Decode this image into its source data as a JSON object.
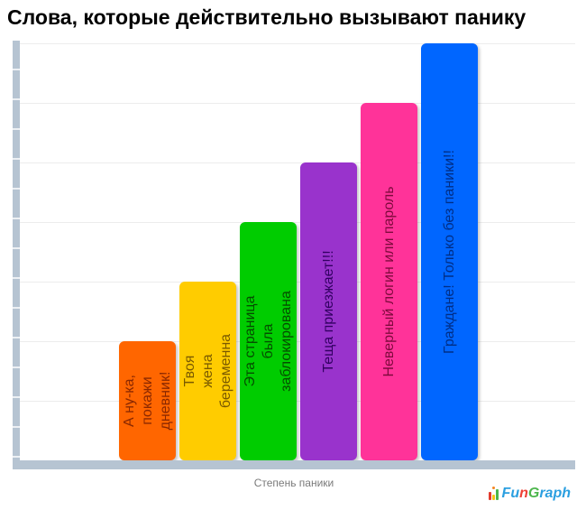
{
  "title": "Слова, которые действительно вызывают панику",
  "theme": {
    "band_color": "#b6c4d2",
    "grid_color": "#ececec",
    "title_color": "#000000",
    "xlabel_color": "#7a7a7a",
    "background": "#ffffff"
  },
  "chart_data": {
    "type": "bar",
    "title": "Слова, которые действительно вызывают панику",
    "xlabel": "Степень паники",
    "ylabel": "",
    "ylim": [
      0,
      7.2
    ],
    "grid": true,
    "legend": "none",
    "orientation": "vertical",
    "note": "unlabeled y-axis; values measured in gridline units",
    "categories": [
      "А ну-ка, покажи дневник!",
      "Твоя жена беременна",
      "Эта страница была заблокирована",
      "Теща приезжает!!!",
      "Неверный логин или пароль",
      "Граждане! Только без паники!!"
    ],
    "values": [
      2,
      3,
      4,
      5,
      6,
      7
    ],
    "bars": [
      {
        "label": "А ну-ка, покажи дневник!",
        "label_lines": [
          "А ну-ка,",
          "покажи",
          "дневник!"
        ],
        "value": 2,
        "color": "#ff6600",
        "label_color": "#8a2800"
      },
      {
        "label": "Твоя жена беременна",
        "label_lines": [
          "Твоя",
          "жена",
          "беременна"
        ],
        "value": 3,
        "color": "#ffcc00",
        "label_color": "#7a5a00"
      },
      {
        "label": "Эта страница была заблокирована",
        "label_lines": [
          "Эта страница",
          "была",
          "заблокирована"
        ],
        "value": 4,
        "color": "#00cc00",
        "label_color": "#054d00"
      },
      {
        "label": "Теща приезжает!!!",
        "label_lines": [
          "Теща приезжает!!!"
        ],
        "value": 5,
        "color": "#9933cc",
        "label_color": "#310061"
      },
      {
        "label": "Неверный логин или пароль",
        "label_lines": [
          "Неверный логин или пароль"
        ],
        "value": 6,
        "color": "#ff3399",
        "label_color": "#7d0a3c"
      },
      {
        "label": "Граждане! Только без паники!!",
        "label_lines": [
          "Граждане! Только без паники!!"
        ],
        "value": 7,
        "color": "#0066ff",
        "label_color": "#002e86"
      }
    ]
  },
  "footer": {
    "xlabel": "Степень паники",
    "logo": {
      "name": "FunGraph",
      "icon_bars": [
        {
          "color": "#e23b2e",
          "h": 9
        },
        {
          "color": "#f5c518",
          "h": 6
        },
        {
          "color": "#4cb64c",
          "h": 12
        }
      ],
      "icon_dot_color": "#f5861f",
      "segments": [
        {
          "text": "Fu",
          "color": "#2b9fe0"
        },
        {
          "text": "n",
          "color": "#ef4136"
        },
        {
          "text": "G",
          "color": "#4cb64c"
        },
        {
          "text": "raph",
          "color": "#2b9fe0"
        }
      ]
    }
  }
}
